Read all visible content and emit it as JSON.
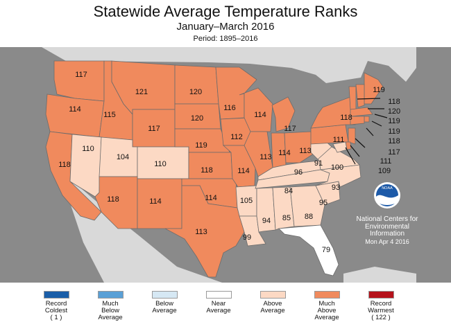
{
  "title": "Statewide Average Temperature Ranks",
  "subtitle": "January–March 2016",
  "period": "Period: 1895–2016",
  "colors": {
    "background": "#8a8a8a",
    "record_coldest": "#1a5ea8",
    "much_below": "#5aa0d6",
    "below": "#d6e8f4",
    "near": "#ffffff",
    "above": "#fcd9c4",
    "much_above": "#f08a5d",
    "record_warmest": "#b5121b"
  },
  "states": [
    {
      "id": "WA",
      "rank": "117",
      "category": "much_above"
    },
    {
      "id": "OR",
      "rank": "114",
      "category": "much_above"
    },
    {
      "id": "CA",
      "rank": "118",
      "category": "much_above"
    },
    {
      "id": "ID",
      "rank": "115",
      "category": "much_above"
    },
    {
      "id": "NV",
      "rank": "110",
      "category": "above"
    },
    {
      "id": "MT",
      "rank": "121",
      "category": "much_above"
    },
    {
      "id": "WY",
      "rank": "117",
      "category": "much_above"
    },
    {
      "id": "UT",
      "rank": "104",
      "category": "above"
    },
    {
      "id": "CO",
      "rank": "110",
      "category": "above"
    },
    {
      "id": "AZ",
      "rank": "118",
      "category": "much_above"
    },
    {
      "id": "NM",
      "rank": "114",
      "category": "much_above"
    },
    {
      "id": "ND",
      "rank": "120",
      "category": "much_above"
    },
    {
      "id": "SD",
      "rank": "120",
      "category": "much_above"
    },
    {
      "id": "NE",
      "rank": "119",
      "category": "much_above"
    },
    {
      "id": "KS",
      "rank": "118",
      "category": "much_above"
    },
    {
      "id": "OK",
      "rank": "114",
      "category": "much_above"
    },
    {
      "id": "TX",
      "rank": "113",
      "category": "much_above"
    },
    {
      "id": "MN",
      "rank": "116",
      "category": "much_above"
    },
    {
      "id": "IA",
      "rank": "112",
      "category": "much_above"
    },
    {
      "id": "MO",
      "rank": "114",
      "category": "much_above"
    },
    {
      "id": "AR",
      "rank": "105",
      "category": "above"
    },
    {
      "id": "LA",
      "rank": "99",
      "category": "above"
    },
    {
      "id": "WI",
      "rank": "114",
      "category": "much_above"
    },
    {
      "id": "IL",
      "rank": "113",
      "category": "much_above"
    },
    {
      "id": "MI",
      "rank": "117",
      "category": "much_above"
    },
    {
      "id": "IN",
      "rank": "114",
      "category": "much_above"
    },
    {
      "id": "OH",
      "rank": "113",
      "category": "much_above"
    },
    {
      "id": "KY",
      "rank": "96",
      "category": "above"
    },
    {
      "id": "TN",
      "rank": "84",
      "category": "above"
    },
    {
      "id": "MS",
      "rank": "94",
      "category": "above"
    },
    {
      "id": "AL",
      "rank": "85",
      "category": "above"
    },
    {
      "id": "GA",
      "rank": "88",
      "category": "above"
    },
    {
      "id": "FL",
      "rank": "79",
      "category": "near"
    },
    {
      "id": "SC",
      "rank": "95",
      "category": "above"
    },
    {
      "id": "NC",
      "rank": "93",
      "category": "above"
    },
    {
      "id": "VA",
      "rank": "100",
      "category": "above"
    },
    {
      "id": "WV",
      "rank": "91",
      "category": "above"
    },
    {
      "id": "PA",
      "rank": "111",
      "category": "much_above"
    },
    {
      "id": "NY",
      "rank": "118",
      "category": "much_above"
    },
    {
      "id": "ME",
      "rank": "119",
      "category": "much_above"
    },
    {
      "id": "NH",
      "rank": "118",
      "category": "much_above"
    },
    {
      "id": "VT",
      "rank": "120",
      "category": "much_above"
    },
    {
      "id": "MA",
      "rank": "119",
      "category": "much_above"
    },
    {
      "id": "RI",
      "rank": "119",
      "category": "much_above"
    },
    {
      "id": "CT",
      "rank": "118",
      "category": "much_above"
    },
    {
      "id": "NJ",
      "rank": "117",
      "category": "much_above"
    },
    {
      "id": "DE",
      "rank": "111",
      "category": "much_above"
    },
    {
      "id": "MD",
      "rank": "109",
      "category": "above"
    }
  ],
  "logo_text": "NOAA",
  "credit": {
    "line1": "National Centers for",
    "line2": "Environmental",
    "line3": "Information",
    "date": "Mon Apr  4 2016"
  },
  "legend": [
    {
      "line1": "Record",
      "line2": "Coldest",
      "line3": "( 1 )",
      "color_key": "record_coldest"
    },
    {
      "line1": "Much",
      "line2": "Below",
      "line3": "Average",
      "color_key": "much_below"
    },
    {
      "line1": "Below",
      "line2": "Average",
      "line3": "",
      "color_key": "below"
    },
    {
      "line1": "Near",
      "line2": "Average",
      "line3": "",
      "color_key": "near"
    },
    {
      "line1": "Above",
      "line2": "Average",
      "line3": "",
      "color_key": "above"
    },
    {
      "line1": "Much",
      "line2": "Above",
      "line3": "Average",
      "color_key": "much_above"
    },
    {
      "line1": "Record",
      "line2": "Warmest",
      "line3": "( 122 )",
      "color_key": "record_warmest"
    }
  ]
}
